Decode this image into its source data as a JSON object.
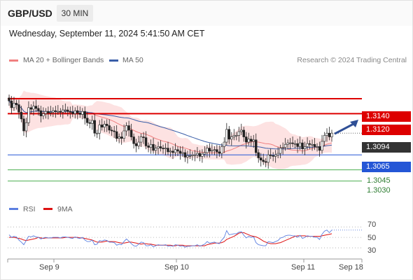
{
  "header": {
    "symbol": "GBP/USD",
    "timeframe": "30 MIN",
    "datetime": "Wednesday, September 11, 2024 5:41:50 AM CET"
  },
  "legend_top": [
    {
      "label": "MA 20 + Bollinger Bands",
      "color": "#f08080"
    },
    {
      "label": "MA 50",
      "color": "#3a5ea8"
    }
  ],
  "credit": "Research © 2024 Trading Central",
  "legend_rsi": [
    {
      "label": "RSI",
      "color": "#5b7fe0"
    },
    {
      "label": "9MA",
      "color": "#dd1111"
    }
  ],
  "levels": {
    "res2": {
      "label": "1.3140",
      "value": 1.314,
      "color": "#dd0000"
    },
    "res1": {
      "label": "1.3120",
      "value": 1.312,
      "color": "#dd0000"
    },
    "last": {
      "label": "1.3094",
      "value": 1.3094,
      "color": "#333333"
    },
    "piv": {
      "label": "1.3065",
      "value": 1.3065,
      "color": "#2456d6"
    },
    "sup1": {
      "label": "1.3045",
      "value": 1.3045,
      "color": "#4caf50"
    },
    "sup2": {
      "label": "1.3030",
      "value": 1.303,
      "color": "#4caf50"
    }
  },
  "rsi_ticks": [
    "70",
    "50",
    "30"
  ],
  "x_labels": [
    "Sep 9",
    "Sep 10",
    "Sep 11",
    "Sep 18"
  ],
  "chart_data": {
    "type": "candlestick",
    "price_range": [
      1.3011,
      1.3183
    ],
    "rsi_range": [
      10,
      85
    ],
    "closes": [
      1.3137,
      1.3128,
      1.3134,
      1.3132,
      1.3122,
      1.3113,
      1.3097,
      1.3108,
      1.3128,
      1.3126,
      1.313,
      1.3127,
      1.3124,
      1.3117,
      1.312,
      1.3123,
      1.3121,
      1.3122,
      1.3124,
      1.3123,
      1.3123,
      1.3122,
      1.3125,
      1.3125,
      1.3123,
      1.3122,
      1.312,
      1.3124,
      1.3121,
      1.3119,
      1.3123,
      1.3114,
      1.3108,
      1.3107,
      1.3111,
      1.3094,
      1.3094,
      1.3105,
      1.3102,
      1.3106,
      1.3104,
      1.3098,
      1.3097,
      1.3096,
      1.3087,
      1.3089,
      1.3087,
      1.3097,
      1.3104,
      1.3098,
      1.3089,
      1.308,
      1.3077,
      1.3082,
      1.3089,
      1.3088,
      1.3077,
      1.3075,
      1.3079,
      1.3071,
      1.3074,
      1.3076,
      1.3074,
      1.3073,
      1.3074,
      1.3069,
      1.307,
      1.3068,
      1.3072,
      1.307,
      1.3067,
      1.3068,
      1.3062,
      1.3064,
      1.3064,
      1.3065,
      1.3065,
      1.3067,
      1.3063,
      1.3066,
      1.3068,
      1.3074,
      1.307,
      1.3071,
      1.3072,
      1.3069,
      1.3067,
      1.3076,
      1.3082,
      1.3099,
      1.3086,
      1.3089,
      1.3091,
      1.3091,
      1.3096,
      1.3098,
      1.3089,
      1.3082,
      1.3086,
      1.3083,
      1.3085,
      1.3068,
      1.3061,
      1.3058,
      1.3056,
      1.3055,
      1.3065,
      1.3064,
      1.3063,
      1.3065,
      1.3067,
      1.3074,
      1.3075,
      1.3079,
      1.3081,
      1.3081,
      1.308,
      1.308,
      1.3076,
      1.3081,
      1.3073,
      1.3076,
      1.308,
      1.3079,
      1.3079,
      1.3076,
      1.3076,
      1.3071,
      1.3083,
      1.3091,
      1.3094,
      1.3089,
      1.3094
    ],
    "rsi": [
      55,
      50,
      52,
      51,
      45,
      41,
      36,
      44,
      52,
      51,
      53,
      51,
      50,
      47,
      49,
      50,
      49,
      49,
      50,
      50,
      50,
      49,
      51,
      51,
      50,
      49,
      48,
      51,
      49,
      48,
      50,
      45,
      42,
      42,
      45,
      36,
      37,
      44,
      43,
      45,
      44,
      41,
      41,
      40,
      35,
      37,
      36,
      42,
      47,
      43,
      38,
      34,
      33,
      37,
      41,
      40,
      34,
      34,
      36,
      32,
      34,
      36,
      35,
      35,
      36,
      33,
      34,
      33,
      36,
      35,
      33,
      34,
      31,
      33,
      33,
      34,
      34,
      36,
      33,
      35,
      37,
      42,
      39,
      40,
      41,
      39,
      38,
      45,
      50,
      63,
      55,
      56,
      57,
      57,
      60,
      61,
      54,
      49,
      52,
      50,
      51,
      40,
      36,
      35,
      34,
      34,
      42,
      41,
      40,
      42,
      44,
      49,
      50,
      53,
      54,
      54,
      53,
      53,
      50,
      54,
      48,
      50,
      53,
      52,
      52,
      50,
      50,
      46,
      56,
      62,
      64,
      59,
      64
    ],
    "rsi_ma": [
      50,
      50,
      50,
      49,
      48,
      47,
      45,
      44,
      45,
      46,
      47,
      48,
      50,
      49,
      48,
      49,
      49,
      49,
      49,
      49,
      49,
      49,
      49,
      50,
      50,
      50,
      50,
      50,
      50,
      49,
      49,
      48,
      47,
      46,
      45,
      43,
      41,
      41,
      41,
      42,
      43,
      42,
      42,
      42,
      41,
      40,
      39,
      39,
      40,
      41,
      41,
      40,
      39,
      38,
      37,
      38,
      38,
      37,
      37,
      36,
      35,
      35,
      35,
      35,
      35,
      35,
      35,
      34,
      34,
      35,
      35,
      35,
      34,
      34,
      34,
      34,
      34,
      34,
      34,
      34,
      34,
      36,
      37,
      38,
      39,
      39,
      39,
      40,
      42,
      46,
      48,
      50,
      52,
      55,
      58,
      59,
      59,
      57,
      55,
      53,
      52,
      51,
      49,
      46,
      43,
      41,
      39,
      38,
      38,
      38,
      39,
      40,
      42,
      44,
      46,
      48,
      50,
      52,
      53,
      53,
      53,
      53,
      52,
      52,
      52,
      52,
      52,
      52,
      53,
      54,
      55,
      56,
      57
    ],
    "series": [
      {
        "name": "MA 20 + Bollinger Bands"
      },
      {
        "name": "MA 50"
      },
      {
        "name": "RSI"
      },
      {
        "name": "9MA"
      }
    ]
  }
}
